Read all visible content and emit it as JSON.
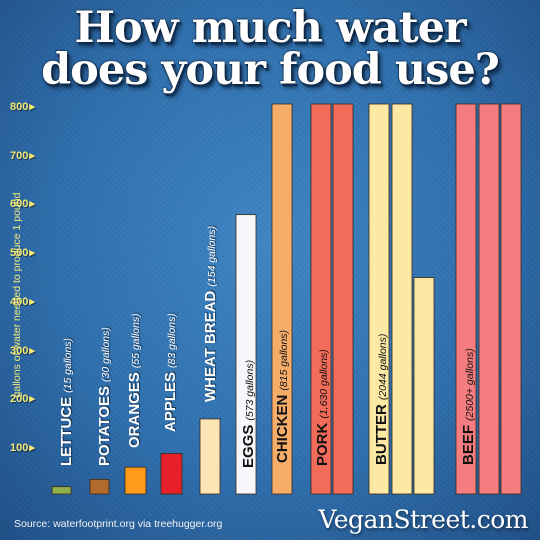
{
  "title_line1": "How much water",
  "title_line2": "does your food use?",
  "source": "Source: waterfootprint.org via treehugger.org",
  "brand": "VeganStreet.com",
  "chart_data": {
    "type": "bar",
    "ylabel": "gallons of water needed to produce 1 pound",
    "ylim": [
      0,
      800
    ],
    "yticks": [
      "100",
      "200",
      "300",
      "400",
      "500",
      "600",
      "700",
      "800"
    ],
    "categories": [
      {
        "label": "LETTUCE",
        "detail": "(15 gallons)",
        "value": 15,
        "color": "#8fb04a",
        "dark": false
      },
      {
        "label": "POTATOES",
        "detail": "(30 gallons)",
        "value": 30,
        "color": "#b06a2c",
        "dark": false
      },
      {
        "label": "ORANGES",
        "detail": "(55 gallons)",
        "value": 55,
        "color": "#ff9a1a",
        "dark": false
      },
      {
        "label": "APPLES",
        "detail": "(83 gallons)",
        "value": 83,
        "color": "#e8202a",
        "dark": false
      },
      {
        "label": "WHEAT BREAD",
        "detail": "(154 gallons)",
        "value": 154,
        "color": "#fbe5b4",
        "dark": false
      },
      {
        "label": "EGGS",
        "detail": "(573 gallons)",
        "value": 573,
        "color": "#f7f7fb",
        "dark": true
      },
      {
        "label": "CHICKEN",
        "detail": "(815 gallons)",
        "value": 815,
        "color": "#f7ad6a",
        "dark": true
      },
      {
        "label": "PORK",
        "detail": "(1,630 gallons)",
        "value": 1630,
        "color": "#f36c5a",
        "dark": true
      },
      {
        "label": "BUTTER",
        "detail": "(2044 gallons)",
        "value": 2044,
        "color": "#fce9a4",
        "dark": true
      },
      {
        "label": "BEEF",
        "detail": "(2500+ gallons)",
        "value": 2500,
        "color": "#f67d7f",
        "dark": true
      }
    ]
  }
}
